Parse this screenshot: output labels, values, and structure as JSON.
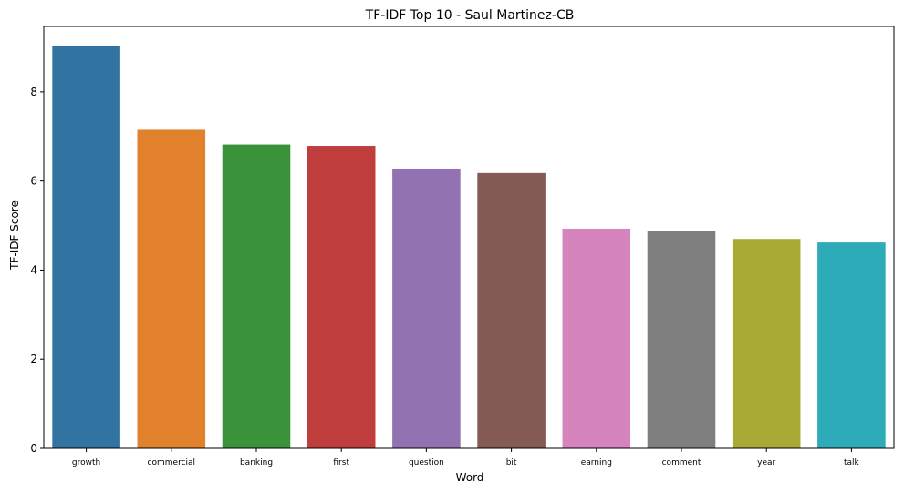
{
  "chart_data": {
    "type": "bar",
    "title": "TF-IDF Top 10 - Saul Martinez-CB",
    "xlabel": "Word",
    "ylabel": "TF-IDF Score",
    "categories": [
      "growth",
      "commercial",
      "banking",
      "first",
      "question",
      "bit",
      "earning",
      "comment",
      "year",
      "talk"
    ],
    "values": [
      9.02,
      7.15,
      6.82,
      6.79,
      6.28,
      6.18,
      4.93,
      4.87,
      4.7,
      4.62
    ],
    "colors": [
      "#3274a1",
      "#e1812c",
      "#3a923a",
      "#c03d3e",
      "#9372b2",
      "#845b53",
      "#d684bd",
      "#7f7f7f",
      "#a9aa35",
      "#2eabb8"
    ],
    "ylim": [
      0,
      9.47
    ],
    "yticks": [
      0,
      2,
      4,
      6,
      8
    ],
    "grid": false,
    "legend": "none"
  }
}
